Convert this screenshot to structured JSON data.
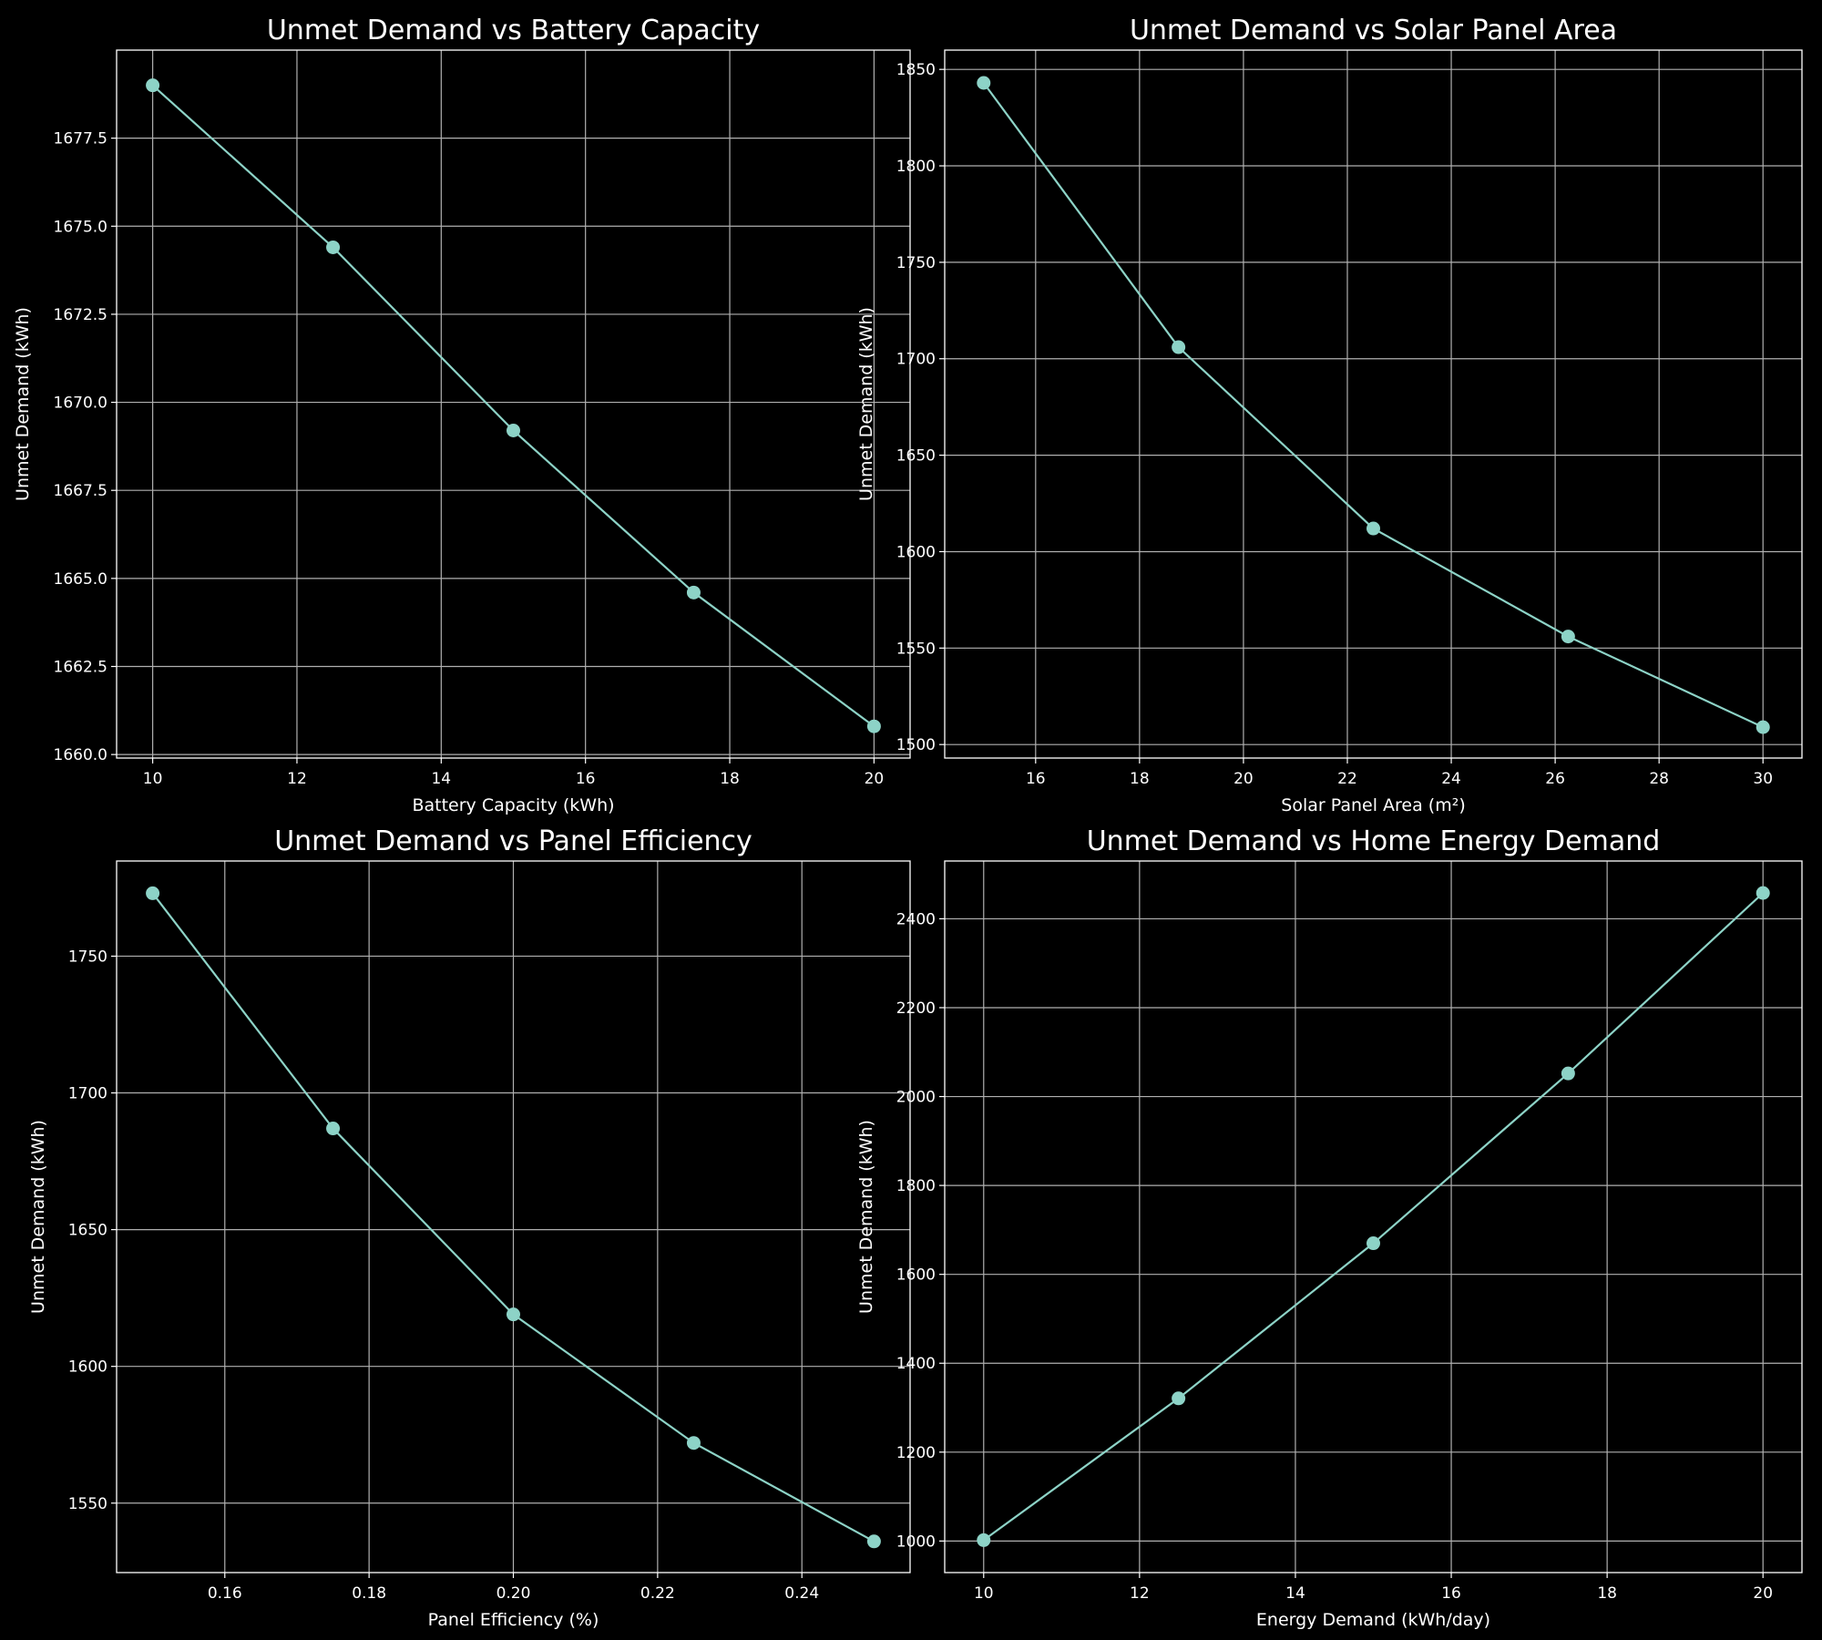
{
  "style": {
    "background": "#000000",
    "line_color": "#8dd3c7",
    "grid_color": "#b0b0b0",
    "text_color": "#ffffff"
  },
  "chart_data": [
    {
      "type": "line",
      "title": "Unmet Demand vs Battery Capacity",
      "xlabel": "Battery Capacity (kWh)",
      "ylabel": "Unmet Demand (kWh)",
      "x": [
        10,
        12.5,
        15,
        17.5,
        20
      ],
      "y": [
        1679.0,
        1674.4,
        1669.2,
        1664.6,
        1660.8
      ],
      "xlim": [
        9.5,
        20.5
      ],
      "ylim": [
        1659.9,
        1680.0
      ],
      "xticks": [
        10,
        12,
        14,
        16,
        18,
        20
      ],
      "xtick_labels": [
        "10",
        "12",
        "14",
        "16",
        "18",
        "20"
      ],
      "yticks": [
        1660,
        1662.5,
        1665,
        1667.5,
        1670,
        1672.5,
        1675,
        1677.5
      ],
      "ytick_labels": [
        "1660.0",
        "1662.5",
        "1665.0",
        "1667.5",
        "1670.0",
        "1672.5",
        "1675.0",
        "1677.5"
      ],
      "grid": true,
      "marker": "circle"
    },
    {
      "type": "line",
      "title": "Unmet Demand vs Solar Panel Area",
      "xlabel": "Solar Panel Area (m²)",
      "ylabel": "Unmet Demand (kWh)",
      "x": [
        15,
        18.75,
        22.5,
        26.25,
        30
      ],
      "y": [
        1843,
        1706,
        1612,
        1556,
        1509
      ],
      "xlim": [
        14.25,
        30.75
      ],
      "ylim": [
        1493,
        1860
      ],
      "xticks": [
        16,
        18,
        20,
        22,
        24,
        26,
        28,
        30
      ],
      "xtick_labels": [
        "16",
        "18",
        "20",
        "22",
        "24",
        "26",
        "28",
        "30"
      ],
      "yticks": [
        1500,
        1550,
        1600,
        1650,
        1700,
        1750,
        1800,
        1850
      ],
      "ytick_labels": [
        "1500",
        "1550",
        "1600",
        "1650",
        "1700",
        "1750",
        "1800",
        "1850"
      ],
      "grid": true,
      "marker": "circle"
    },
    {
      "type": "line",
      "title": "Unmet Demand vs Panel Efficiency",
      "xlabel": "Panel Efficiency (%)",
      "ylabel": "Unmet Demand (kWh)",
      "x": [
        0.15,
        0.175,
        0.2,
        0.225,
        0.25
      ],
      "y": [
        1773,
        1687,
        1619,
        1572,
        1536
      ],
      "xlim": [
        0.145,
        0.255
      ],
      "ylim": [
        1524.6,
        1784.8
      ],
      "xticks": [
        0.16,
        0.18,
        0.2,
        0.22,
        0.24
      ],
      "xtick_labels": [
        "0.16",
        "0.18",
        "0.20",
        "0.22",
        "0.24"
      ],
      "yticks": [
        1550,
        1600,
        1650,
        1700,
        1750
      ],
      "ytick_labels": [
        "1550",
        "1600",
        "1650",
        "1700",
        "1750"
      ],
      "grid": true,
      "marker": "circle"
    },
    {
      "type": "line",
      "title": "Unmet Demand vs Home Energy Demand",
      "xlabel": "Energy Demand (kWh/day)",
      "ylabel": "Unmet Demand (kWh)",
      "x": [
        10,
        12.5,
        15,
        17.5,
        20
      ],
      "y": [
        1002,
        1321,
        1670,
        2052,
        2458
      ],
      "xlim": [
        9.5,
        20.5
      ],
      "ylim": [
        929,
        2530
      ],
      "xticks": [
        10,
        12,
        14,
        16,
        18,
        20
      ],
      "xtick_labels": [
        "10",
        "12",
        "14",
        "16",
        "18",
        "20"
      ],
      "yticks": [
        1000,
        1200,
        1400,
        1600,
        1800,
        2000,
        2200,
        2400
      ],
      "ytick_labels": [
        "1000",
        "1200",
        "1400",
        "1600",
        "1800",
        "2000",
        "2200",
        "2400"
      ],
      "grid": true,
      "marker": "circle"
    }
  ]
}
